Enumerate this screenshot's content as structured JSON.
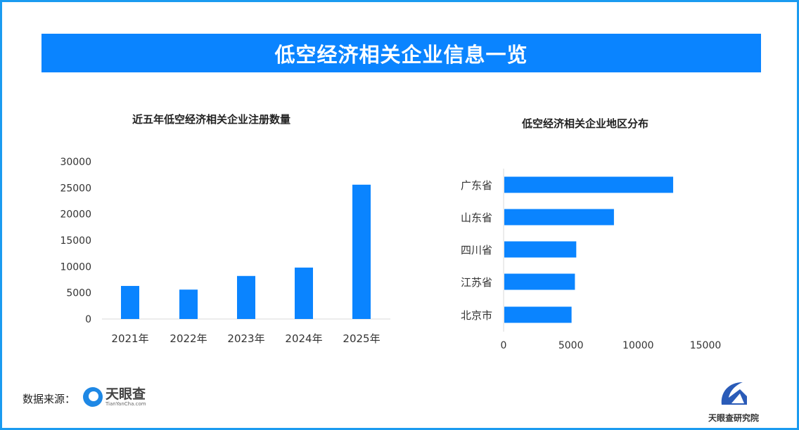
{
  "title": "低空经济相关企业信息一览",
  "colors": {
    "bar": "#0a84ff",
    "banner": "#0a84ff",
    "frame": "#1a9bf0"
  },
  "footer": {
    "source_label": "数据来源：",
    "source_logo": "天眼查",
    "source_logo_sub": "TianYanCha.com",
    "brand": "天眼查研究院"
  },
  "chart_data": [
    {
      "type": "bar",
      "title": "近五年低空经济相关企业注册数量",
      "categories": [
        "2021年",
        "2022年",
        "2023年",
        "2024年",
        "2025年"
      ],
      "values": [
        6300,
        5600,
        8200,
        9800,
        25600
      ],
      "ylim": [
        0,
        30000
      ],
      "yticks": [
        "0",
        "5000",
        "10000",
        "15000",
        "20000",
        "25000",
        "30000"
      ],
      "grid": false
    },
    {
      "type": "bar",
      "orientation": "horizontal",
      "title": "低空经济相关企业地区分布",
      "categories": [
        "广东省",
        "山东省",
        "四川省",
        "江苏省",
        "北京市"
      ],
      "values": [
        12600,
        8200,
        5400,
        5300,
        5050
      ],
      "xlim": [
        0,
        15000
      ],
      "xticks": [
        "0",
        "5000",
        "10000",
        "15000"
      ],
      "grid": false
    }
  ]
}
